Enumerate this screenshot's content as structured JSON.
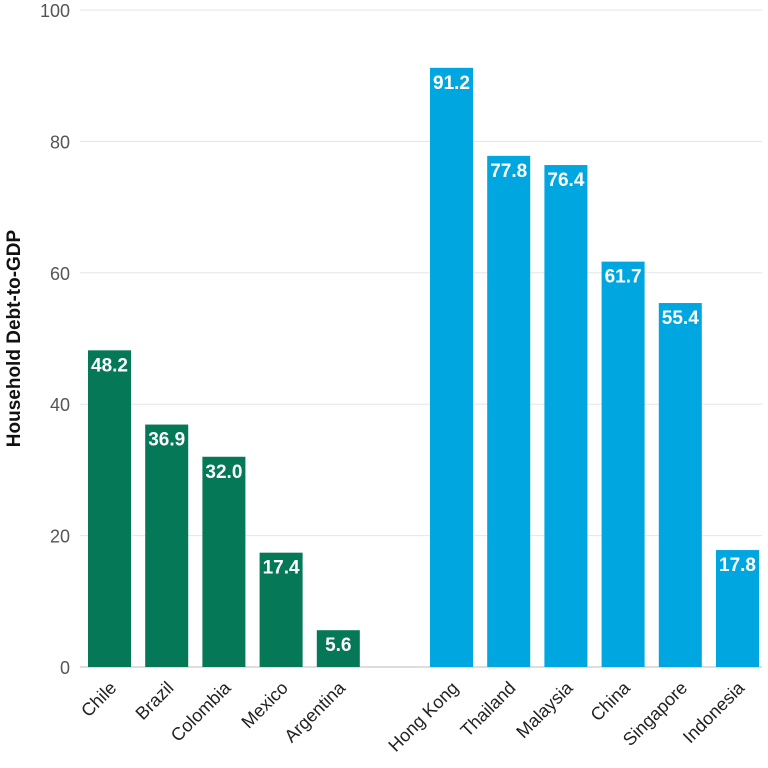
{
  "chart_data": {
    "type": "bar",
    "title": "",
    "xlabel": "",
    "ylabel": "Household Debt-to-GDP",
    "ylim": [
      0,
      100
    ],
    "yticks": [
      0,
      20,
      40,
      60,
      80,
      100
    ],
    "grid": true,
    "groups": [
      {
        "color": "#047857",
        "categories": [
          "Chile",
          "Brazil",
          "Colombia",
          "Mexico",
          "Argentina"
        ],
        "values": [
          48.2,
          36.9,
          32.0,
          17.4,
          5.6
        ],
        "labels": [
          "48.2",
          "36.9",
          "32.0",
          "17.4",
          "5.6"
        ]
      },
      {
        "color": "#00a6df",
        "categories": [
          "Hong Kong",
          "Thailand",
          "Malaysia",
          "China",
          "Singapore",
          "Indonesia"
        ],
        "values": [
          91.2,
          77.8,
          76.4,
          61.7,
          55.4,
          17.8
        ],
        "labels": [
          "91.2",
          "77.8",
          "76.4",
          "61.7",
          "55.4",
          "17.8"
        ]
      }
    ]
  }
}
